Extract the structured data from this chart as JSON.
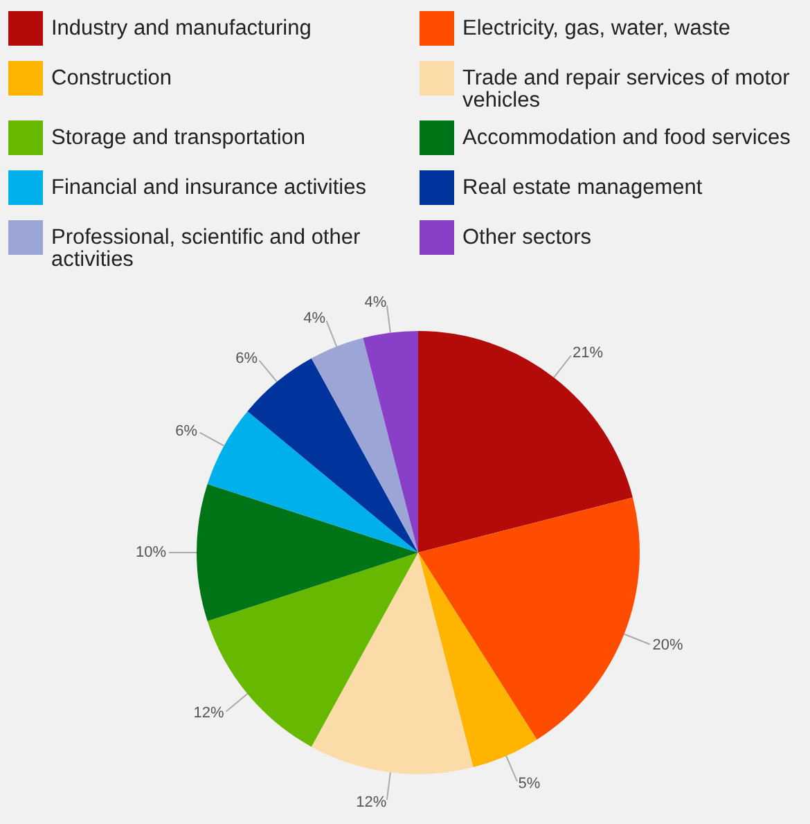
{
  "chart_data": {
    "type": "pie",
    "categories": [
      "Industry and manufacturing",
      "Electricity, gas, water, waste",
      "Construction",
      "Trade and repair services of motor vehicles",
      "Storage and transportation",
      "Accommodation and food services",
      "Financial and insurance activities",
      "Real estate management",
      "Professional, scientific and other activities",
      "Other sectors"
    ],
    "values": [
      21,
      20,
      5,
      12,
      12,
      10,
      6,
      6,
      4,
      4
    ],
    "value_labels": [
      "21%",
      "20%",
      "5%",
      "12%",
      "12%",
      "10%",
      "6%",
      "6%",
      "4%",
      "4%"
    ],
    "colors": [
      "#b30a0a",
      "#ff4d00",
      "#ffb400",
      "#fbdca8",
      "#66b800",
      "#007518",
      "#00b0ea",
      "#00339b",
      "#9ca6d6",
      "#8a3fc8"
    ],
    "legend": "top"
  }
}
